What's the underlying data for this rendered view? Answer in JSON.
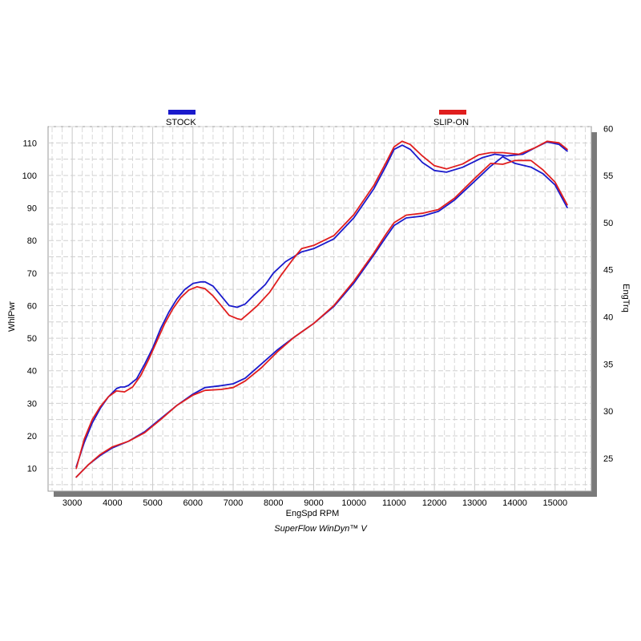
{
  "chart_data": {
    "type": "line",
    "footer": "SuperFlow WinDyn™ V",
    "xlabel": "EngSpd  RPM",
    "ylabel_left": "WhlPwr",
    "ylabel_right": "EngTrq",
    "xlim": [
      2400,
      15900
    ],
    "ylim_left": [
      3,
      115
    ],
    "ylim_right": [
      21.5,
      60.2
    ],
    "x_ticks": [
      "3000",
      "4000",
      "5000",
      "6000",
      "7000",
      "8000",
      "9000",
      "10000",
      "11000",
      "12000",
      "13000",
      "14000",
      "15000"
    ],
    "y_left_ticks": [
      "10",
      "20",
      "30",
      "40",
      "50",
      "60",
      "70",
      "80",
      "90",
      "100",
      "110"
    ],
    "y_right_ticks": [
      "25",
      "30",
      "35",
      "40",
      "45",
      "50",
      "55",
      "60"
    ],
    "grid": true,
    "legend_placement": "top",
    "series": [
      {
        "name": "STOCK",
        "color": "#1a1acc",
        "power": [
          [
            3100,
            10.5
          ],
          [
            3300,
            18
          ],
          [
            3500,
            24
          ],
          [
            3700,
            28.5
          ],
          [
            3900,
            32
          ],
          [
            4100,
            34.5
          ],
          [
            4200,
            35
          ],
          [
            4300,
            35
          ],
          [
            4400,
            35.5
          ],
          [
            4600,
            37.5
          ],
          [
            4800,
            42
          ],
          [
            5000,
            47
          ],
          [
            5200,
            53
          ],
          [
            5400,
            58
          ],
          [
            5600,
            62
          ],
          [
            5800,
            65
          ],
          [
            6000,
            66.8
          ],
          [
            6200,
            67.3
          ],
          [
            6300,
            67.3
          ],
          [
            6500,
            66
          ],
          [
            6700,
            63
          ],
          [
            6900,
            60
          ],
          [
            7100,
            59.5
          ],
          [
            7300,
            60.5
          ],
          [
            7500,
            63
          ],
          [
            7800,
            66.5
          ],
          [
            8000,
            70
          ],
          [
            8300,
            73.5
          ],
          [
            8700,
            76.5
          ],
          [
            9000,
            77.5
          ],
          [
            9500,
            80.5
          ],
          [
            10000,
            87
          ],
          [
            10500,
            96
          ],
          [
            10800,
            103
          ],
          [
            11000,
            108
          ],
          [
            11200,
            109.3
          ],
          [
            11400,
            108
          ],
          [
            11700,
            104
          ],
          [
            12000,
            101.5
          ],
          [
            12300,
            101
          ],
          [
            12700,
            102.5
          ],
          [
            13200,
            105.5
          ],
          [
            13500,
            106.5
          ],
          [
            13800,
            106
          ],
          [
            14200,
            106.5
          ],
          [
            14500,
            108.5
          ],
          [
            14800,
            110.3
          ],
          [
            15100,
            109.5
          ],
          [
            15300,
            107.5
          ]
        ],
        "torque": [
          [
            3100,
            23
          ],
          [
            3400,
            24.3
          ],
          [
            3700,
            25.3
          ],
          [
            4000,
            26.1
          ],
          [
            4400,
            26.8
          ],
          [
            4800,
            27.8
          ],
          [
            5200,
            29.2
          ],
          [
            5600,
            30.6
          ],
          [
            6000,
            31.8
          ],
          [
            6300,
            32.5
          ],
          [
            6700,
            32.7
          ],
          [
            7000,
            32.9
          ],
          [
            7300,
            33.5
          ],
          [
            7700,
            35
          ],
          [
            8100,
            36.5
          ],
          [
            8500,
            37.8
          ],
          [
            9000,
            39.3
          ],
          [
            9500,
            41.1
          ],
          [
            10000,
            43.6
          ],
          [
            10500,
            46.6
          ],
          [
            10800,
            48.5
          ],
          [
            11000,
            49.7
          ],
          [
            11300,
            50.5
          ],
          [
            11700,
            50.7
          ],
          [
            12100,
            51.2
          ],
          [
            12500,
            52.4
          ],
          [
            13000,
            54.4
          ],
          [
            13400,
            56
          ],
          [
            13700,
            57
          ],
          [
            14000,
            56.3
          ],
          [
            14400,
            55.9
          ],
          [
            14700,
            55.2
          ],
          [
            15000,
            54
          ],
          [
            15300,
            51.6
          ]
        ]
      },
      {
        "name": "SLIP-ON",
        "color": "#e01e1e",
        "power": [
          [
            3100,
            10
          ],
          [
            3300,
            19
          ],
          [
            3500,
            25
          ],
          [
            3700,
            29
          ],
          [
            3900,
            32
          ],
          [
            4100,
            33.8
          ],
          [
            4300,
            33.5
          ],
          [
            4500,
            35
          ],
          [
            4700,
            38.5
          ],
          [
            4900,
            43.5
          ],
          [
            5100,
            49
          ],
          [
            5300,
            54.5
          ],
          [
            5500,
            59
          ],
          [
            5700,
            62.5
          ],
          [
            5900,
            64.8
          ],
          [
            6100,
            65.8
          ],
          [
            6300,
            65.2
          ],
          [
            6500,
            63
          ],
          [
            6700,
            60
          ],
          [
            6900,
            57
          ],
          [
            7100,
            56
          ],
          [
            7200,
            55.7
          ],
          [
            7400,
            57.8
          ],
          [
            7600,
            60
          ],
          [
            7900,
            64
          ],
          [
            8200,
            69.5
          ],
          [
            8500,
            74.5
          ],
          [
            8700,
            77.5
          ],
          [
            9000,
            78.5
          ],
          [
            9500,
            81.5
          ],
          [
            10000,
            88
          ],
          [
            10500,
            97
          ],
          [
            10800,
            104
          ],
          [
            11000,
            108.8
          ],
          [
            11200,
            110.5
          ],
          [
            11400,
            109.5
          ],
          [
            11700,
            106
          ],
          [
            12000,
            103
          ],
          [
            12300,
            102
          ],
          [
            12700,
            103.5
          ],
          [
            13100,
            106.3
          ],
          [
            13400,
            107
          ],
          [
            13700,
            107
          ],
          [
            14100,
            106.5
          ],
          [
            14500,
            108.5
          ],
          [
            14800,
            110.5
          ],
          [
            15100,
            110
          ],
          [
            15300,
            108
          ]
        ],
        "torque": [
          [
            3100,
            23
          ],
          [
            3400,
            24.3
          ],
          [
            3700,
            25.4
          ],
          [
            4000,
            26.2
          ],
          [
            4400,
            26.8
          ],
          [
            4800,
            27.7
          ],
          [
            5200,
            29.1
          ],
          [
            5600,
            30.6
          ],
          [
            6000,
            31.7
          ],
          [
            6300,
            32.2
          ],
          [
            6700,
            32.3
          ],
          [
            7000,
            32.5
          ],
          [
            7300,
            33.2
          ],
          [
            7700,
            34.6
          ],
          [
            8100,
            36.3
          ],
          [
            8500,
            37.8
          ],
          [
            9000,
            39.3
          ],
          [
            9500,
            41.2
          ],
          [
            10000,
            43.8
          ],
          [
            10500,
            46.8
          ],
          [
            10800,
            48.8
          ],
          [
            11000,
            50
          ],
          [
            11300,
            50.8
          ],
          [
            11700,
            51
          ],
          [
            12100,
            51.4
          ],
          [
            12500,
            52.6
          ],
          [
            13000,
            54.7
          ],
          [
            13400,
            56.3
          ],
          [
            13700,
            56.2
          ],
          [
            14000,
            56.6
          ],
          [
            14400,
            56.6
          ],
          [
            14700,
            55.6
          ],
          [
            15000,
            54.3
          ],
          [
            15300,
            51.9
          ]
        ]
      }
    ]
  }
}
